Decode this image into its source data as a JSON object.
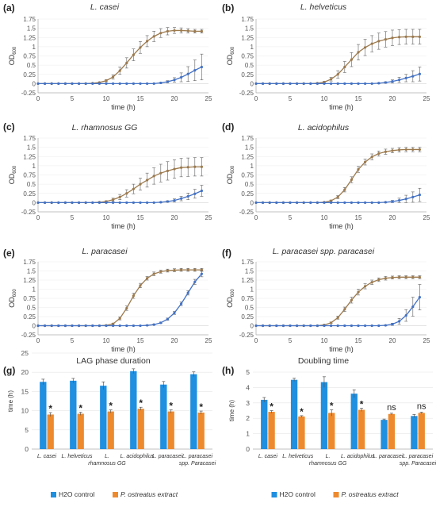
{
  "panel_labels": [
    "(a)",
    "(b)",
    "(c)",
    "(d)",
    "(e)",
    "(f)",
    "(g)",
    "(h)"
  ],
  "colors": {
    "control": "#4472c4",
    "extract": "#9c7a4e",
    "bar_control": "#1f8fe0",
    "bar_extract": "#ed8a2e",
    "axis": "#b0b0b0",
    "error": "#606060"
  },
  "chart_data": [
    {
      "type": "line",
      "title": "L. casei",
      "xlabel": "time (h)",
      "ylabel": "OD600",
      "ylim": [
        -0.25,
        1.75
      ],
      "xlim": [
        0,
        25
      ],
      "yticks": [
        "-0.25",
        "0",
        "0.25",
        "0.5",
        "0.75",
        "1",
        "1.25",
        "1.5",
        "1.75"
      ],
      "xticks": [
        "0",
        "5",
        "10",
        "15",
        "20",
        "25"
      ],
      "x": [
        0,
        1,
        2,
        3,
        4,
        5,
        6,
        7,
        8,
        9,
        10,
        11,
        12,
        13,
        14,
        15,
        16,
        17,
        18,
        19,
        20,
        21,
        22,
        23,
        24
      ],
      "series": [
        {
          "key": "extract",
          "values": [
            0,
            0,
            0,
            0,
            0,
            0,
            0,
            0,
            0.01,
            0.03,
            0.08,
            0.18,
            0.35,
            0.56,
            0.78,
            0.98,
            1.15,
            1.28,
            1.37,
            1.42,
            1.44,
            1.44,
            1.43,
            1.42,
            1.42
          ],
          "errors": [
            0,
            0,
            0,
            0,
            0,
            0,
            0,
            0,
            0,
            0.01,
            0.03,
            0.06,
            0.1,
            0.14,
            0.16,
            0.16,
            0.15,
            0.14,
            0.12,
            0.1,
            0.08,
            0.07,
            0.06,
            0.05,
            0.05
          ]
        },
        {
          "key": "control",
          "values": [
            0,
            0,
            0,
            0,
            0,
            0,
            0,
            0,
            0,
            0,
            0,
            0,
            0,
            0,
            0,
            0,
            0,
            0,
            0.02,
            0.05,
            0.1,
            0.17,
            0.26,
            0.36,
            0.45
          ],
          "errors": [
            0,
            0,
            0,
            0,
            0,
            0,
            0,
            0,
            0,
            0,
            0,
            0,
            0,
            0,
            0,
            0,
            0,
            0,
            0.01,
            0.03,
            0.06,
            0.12,
            0.2,
            0.28,
            0.35
          ]
        }
      ]
    },
    {
      "type": "line",
      "title": "L. helveticus",
      "xlabel": "time (h)",
      "ylabel": "OD600",
      "ylim": [
        -0.25,
        1.75
      ],
      "xlim": [
        0,
        25
      ],
      "yticks": [
        "-0.25",
        "0",
        "0.25",
        "0.5",
        "0.75",
        "1",
        "1.25",
        "1.5",
        "1.75"
      ],
      "xticks": [
        "0",
        "5",
        "10",
        "15",
        "20",
        "25"
      ],
      "x": [
        0,
        1,
        2,
        3,
        4,
        5,
        6,
        7,
        8,
        9,
        10,
        11,
        12,
        13,
        14,
        15,
        16,
        17,
        18,
        19,
        20,
        21,
        22,
        23,
        24
      ],
      "series": [
        {
          "key": "extract",
          "values": [
            0,
            0,
            0,
            0,
            0,
            0,
            0,
            0,
            0,
            0.01,
            0.04,
            0.12,
            0.25,
            0.45,
            0.65,
            0.85,
            0.98,
            1.08,
            1.15,
            1.2,
            1.24,
            1.26,
            1.27,
            1.27,
            1.27
          ],
          "errors": [
            0,
            0,
            0,
            0,
            0,
            0,
            0,
            0,
            0,
            0.01,
            0.02,
            0.05,
            0.1,
            0.15,
            0.19,
            0.21,
            0.22,
            0.22,
            0.22,
            0.21,
            0.21,
            0.2,
            0.2,
            0.2,
            0.2
          ]
        },
        {
          "key": "control",
          "values": [
            0,
            0,
            0,
            0,
            0,
            0,
            0,
            0,
            0,
            0,
            0,
            0,
            0,
            0,
            0,
            0,
            0,
            0,
            0.01,
            0.03,
            0.06,
            0.1,
            0.15,
            0.2,
            0.26
          ],
          "errors": [
            0,
            0,
            0,
            0,
            0,
            0,
            0,
            0,
            0,
            0,
            0,
            0,
            0,
            0,
            0,
            0,
            0,
            0,
            0.01,
            0.02,
            0.04,
            0.07,
            0.1,
            0.15,
            0.19
          ]
        }
      ]
    },
    {
      "type": "line",
      "title": "L. rhamnosus GG",
      "xlabel": "time (h)",
      "ylabel": "OD600",
      "ylim": [
        -0.25,
        1.75
      ],
      "xlim": [
        0,
        25
      ],
      "yticks": [
        "-0.25",
        "0",
        "0.25",
        "0.5",
        "0.75",
        "1",
        "1.25",
        "1.5",
        "1.75"
      ],
      "xticks": [
        "0",
        "5",
        "10",
        "15",
        "20",
        "25"
      ],
      "x": [
        0,
        1,
        2,
        3,
        4,
        5,
        6,
        7,
        8,
        9,
        10,
        11,
        12,
        13,
        14,
        15,
        16,
        17,
        18,
        19,
        20,
        21,
        22,
        23,
        24
      ],
      "series": [
        {
          "key": "extract",
          "values": [
            0,
            0,
            0,
            0,
            0,
            0,
            0,
            0,
            0,
            0.01,
            0.03,
            0.08,
            0.15,
            0.25,
            0.37,
            0.5,
            0.61,
            0.72,
            0.8,
            0.86,
            0.91,
            0.95,
            0.96,
            0.97,
            0.97
          ],
          "errors": [
            0,
            0,
            0,
            0,
            0,
            0,
            0,
            0,
            0,
            0.01,
            0.02,
            0.04,
            0.07,
            0.1,
            0.13,
            0.16,
            0.19,
            0.22,
            0.24,
            0.25,
            0.25,
            0.25,
            0.25,
            0.25,
            0.25
          ]
        },
        {
          "key": "control",
          "values": [
            0,
            0,
            0,
            0,
            0,
            0,
            0,
            0,
            0,
            0,
            0,
            0,
            0,
            0,
            0,
            0,
            0,
            0,
            0.01,
            0.03,
            0.06,
            0.11,
            0.17,
            0.24,
            0.32
          ],
          "errors": [
            0,
            0,
            0,
            0,
            0,
            0,
            0,
            0,
            0,
            0,
            0,
            0,
            0,
            0,
            0,
            0,
            0,
            0,
            0.01,
            0.02,
            0.04,
            0.06,
            0.09,
            0.12,
            0.15
          ]
        }
      ]
    },
    {
      "type": "line",
      "title": "L. acidophilus",
      "xlabel": "time (h)",
      "ylabel": "OD600",
      "ylim": [
        -0.25,
        1.75
      ],
      "xlim": [
        0,
        25
      ],
      "yticks": [
        "-0.25",
        "0",
        "0.25",
        "0.5",
        "0.75",
        "1",
        "1.25",
        "1.5",
        "1.75"
      ],
      "xticks": [
        "0",
        "5",
        "10",
        "15",
        "20",
        "25"
      ],
      "x": [
        0,
        1,
        2,
        3,
        4,
        5,
        6,
        7,
        8,
        9,
        10,
        11,
        12,
        13,
        14,
        15,
        16,
        17,
        18,
        19,
        20,
        21,
        22,
        23,
        24
      ],
      "series": [
        {
          "key": "extract",
          "values": [
            0,
            0,
            0,
            0,
            0,
            0,
            0,
            0,
            0,
            0,
            0.01,
            0.05,
            0.15,
            0.35,
            0.62,
            0.9,
            1.1,
            1.24,
            1.33,
            1.38,
            1.41,
            1.43,
            1.44,
            1.44,
            1.44
          ],
          "errors": [
            0,
            0,
            0,
            0,
            0,
            0,
            0,
            0,
            0,
            0,
            0.01,
            0.02,
            0.04,
            0.06,
            0.08,
            0.08,
            0.08,
            0.08,
            0.07,
            0.07,
            0.06,
            0.06,
            0.06,
            0.06,
            0.06
          ]
        },
        {
          "key": "control",
          "values": [
            0,
            0,
            0,
            0,
            0,
            0,
            0,
            0,
            0,
            0,
            0,
            0,
            0,
            0,
            0,
            0,
            0,
            0,
            0,
            0.01,
            0.03,
            0.06,
            0.1,
            0.15,
            0.21
          ],
          "errors": [
            0,
            0,
            0,
            0,
            0,
            0,
            0,
            0,
            0,
            0,
            0,
            0,
            0,
            0,
            0,
            0,
            0,
            0,
            0,
            0.01,
            0.03,
            0.06,
            0.1,
            0.14,
            0.18
          ]
        }
      ]
    },
    {
      "type": "line",
      "title": "L. paracasei",
      "xlabel": "time (h)",
      "ylabel": "OD600",
      "ylim": [
        -0.25,
        1.75
      ],
      "xlim": [
        0,
        25
      ],
      "yticks": [
        "-0.25",
        "0",
        "0.25",
        "0.5",
        "0.75",
        "1",
        "1.25",
        "1.5",
        "1.75"
      ],
      "xticks": [
        "0",
        "5",
        "10",
        "15",
        "20",
        "25"
      ],
      "x": [
        0,
        1,
        2,
        3,
        4,
        5,
        6,
        7,
        8,
        9,
        10,
        11,
        12,
        13,
        14,
        15,
        16,
        17,
        18,
        19,
        20,
        21,
        22,
        23,
        24
      ],
      "series": [
        {
          "key": "extract",
          "values": [
            0,
            0,
            0,
            0,
            0,
            0,
            0,
            0,
            0,
            0,
            0.01,
            0.05,
            0.2,
            0.48,
            0.82,
            1.1,
            1.3,
            1.42,
            1.48,
            1.51,
            1.52,
            1.53,
            1.53,
            1.53,
            1.53
          ],
          "errors": [
            0,
            0,
            0,
            0,
            0,
            0,
            0,
            0,
            0,
            0,
            0.01,
            0.02,
            0.04,
            0.06,
            0.07,
            0.06,
            0.05,
            0.05,
            0.04,
            0.04,
            0.04,
            0.04,
            0.04,
            0.04,
            0.04
          ]
        },
        {
          "key": "control",
          "values": [
            0,
            0,
            0,
            0,
            0,
            0,
            0,
            0,
            0,
            0,
            0,
            0,
            0,
            0,
            0,
            0,
            0.01,
            0.03,
            0.08,
            0.18,
            0.35,
            0.6,
            0.9,
            1.2,
            1.42
          ],
          "errors": [
            0,
            0,
            0,
            0,
            0,
            0,
            0,
            0,
            0,
            0,
            0,
            0,
            0,
            0,
            0,
            0,
            0.01,
            0.01,
            0.02,
            0.03,
            0.04,
            0.05,
            0.06,
            0.07,
            0.08
          ]
        }
      ]
    },
    {
      "type": "line",
      "title": "L. paracasei spp. paracasei",
      "xlabel": "time (h)",
      "ylabel": "OD600",
      "ylim": [
        -0.25,
        1.75
      ],
      "xlim": [
        0,
        25
      ],
      "yticks": [
        "-0.25",
        "0",
        "0.25",
        "0.5",
        "0.75",
        "1",
        "1.25",
        "1.5",
        "1.75"
      ],
      "xticks": [
        "0",
        "5",
        "10",
        "15",
        "20",
        "25"
      ],
      "x": [
        0,
        1,
        2,
        3,
        4,
        5,
        6,
        7,
        8,
        9,
        10,
        11,
        12,
        13,
        14,
        15,
        16,
        17,
        18,
        19,
        20,
        21,
        22,
        23,
        24
      ],
      "series": [
        {
          "key": "extract",
          "values": [
            0,
            0,
            0,
            0,
            0,
            0,
            0,
            0,
            0,
            0,
            0.02,
            0.08,
            0.22,
            0.45,
            0.7,
            0.92,
            1.08,
            1.19,
            1.26,
            1.3,
            1.32,
            1.33,
            1.33,
            1.33,
            1.33
          ],
          "errors": [
            0,
            0,
            0,
            0,
            0,
            0,
            0,
            0,
            0,
            0,
            0.01,
            0.02,
            0.04,
            0.06,
            0.08,
            0.08,
            0.07,
            0.06,
            0.05,
            0.05,
            0.04,
            0.04,
            0.04,
            0.04,
            0.04
          ]
        },
        {
          "key": "control",
          "values": [
            0,
            0,
            0,
            0,
            0,
            0,
            0,
            0,
            0,
            0,
            0,
            0,
            0,
            0,
            0,
            0,
            0,
            0,
            0,
            0.01,
            0.04,
            0.12,
            0.28,
            0.52,
            0.78
          ],
          "errors": [
            0,
            0,
            0,
            0,
            0,
            0,
            0,
            0,
            0,
            0,
            0,
            0,
            0,
            0,
            0,
            0,
            0,
            0,
            0,
            0.01,
            0.03,
            0.08,
            0.16,
            0.26,
            0.35
          ]
        }
      ]
    },
    {
      "type": "bar",
      "title": "LAG phase duration",
      "ylabel": "time (h)",
      "ylim": [
        0,
        25
      ],
      "yticks": [
        "0",
        "5",
        "10",
        "15",
        "20",
        "25"
      ],
      "categories": [
        "L. casei",
        "L. helveticus",
        "L. rhamnosus GG",
        "L. acidophilus",
        "L. paracasei",
        "L. paracasei spp. Paracasei"
      ],
      "series": [
        {
          "key": "control",
          "name": "H2O control",
          "values": [
            17.5,
            17.8,
            16.5,
            20.3,
            16.8,
            19.5
          ],
          "errors": [
            0.7,
            0.6,
            1.0,
            0.6,
            0.8,
            0.6
          ]
        },
        {
          "key": "extract",
          "name": "P. ostreatus extract",
          "values": [
            9.0,
            9.2,
            9.8,
            10.5,
            9.8,
            9.5
          ],
          "errors": [
            0.5,
            0.4,
            0.4,
            0.4,
            0.4,
            0.4
          ]
        }
      ],
      "annotations": [
        "*",
        "*",
        "*",
        "*",
        "*",
        "*"
      ]
    },
    {
      "type": "bar",
      "title": "Doubling time",
      "ylabel": "time (h)",
      "ylim": [
        0,
        5
      ],
      "yticks": [
        "0",
        "1",
        "2",
        "3",
        "4",
        "5"
      ],
      "categories": [
        "L. casei",
        "L. helveticus",
        "L. rhamnosus GG",
        "L. acidophilus",
        "L. paracasei",
        "L. paracasei spp. Paracasei"
      ],
      "series": [
        {
          "key": "control",
          "name": "H2O control",
          "values": [
            3.2,
            4.5,
            4.35,
            3.6,
            1.9,
            2.15
          ],
          "errors": [
            0.15,
            0.1,
            0.35,
            0.25,
            0.05,
            0.1
          ]
        },
        {
          "key": "extract",
          "name": "P. ostreatus extract",
          "values": [
            2.42,
            2.12,
            2.35,
            2.55,
            2.28,
            2.35
          ],
          "errors": [
            0.08,
            0.05,
            0.2,
            0.1,
            0.05,
            0.05
          ]
        }
      ],
      "annotations": [
        "*",
        "*",
        "*",
        "*",
        "ns",
        "ns"
      ]
    }
  ]
}
